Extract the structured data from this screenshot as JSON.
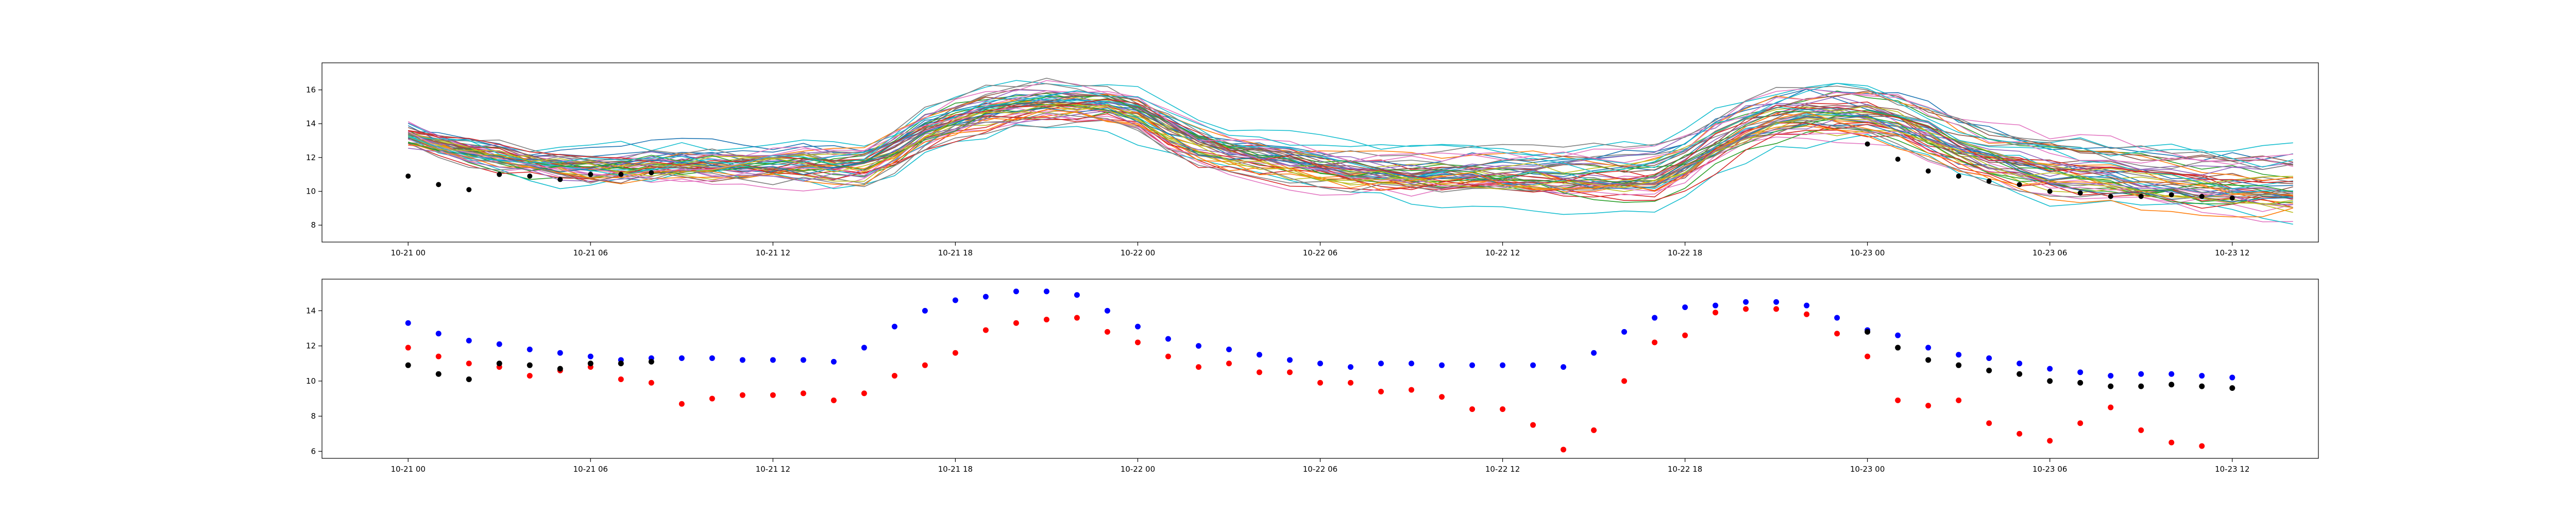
{
  "chart_data": [
    {
      "type": "line",
      "title": "",
      "xlabel": "",
      "ylabel": "",
      "x_start": "2023-10-21 00:00",
      "x_step_hours": 1,
      "xlim": [
        "2023-10-20 21:10",
        "2023-10-23 14:50"
      ],
      "ylim": [
        7.0,
        17.6
      ],
      "yticks": [
        8,
        10,
        12,
        14,
        16
      ],
      "xticks": [
        {
          "t": "2023-10-21 00:00",
          "label": "10-21 00"
        },
        {
          "t": "2023-10-21 06:00",
          "label": "10-21 06"
        },
        {
          "t": "2023-10-21 12:00",
          "label": "10-21 12"
        },
        {
          "t": "2023-10-21 18:00",
          "label": "10-21 18"
        },
        {
          "t": "2023-10-22 00:00",
          "label": "10-22 00"
        },
        {
          "t": "2023-10-22 06:00",
          "label": "10-22 06"
        },
        {
          "t": "2023-10-22 12:00",
          "label": "10-22 12"
        },
        {
          "t": "2023-10-22 18:00",
          "label": "10-22 18"
        },
        {
          "t": "2023-10-23 00:00",
          "label": "10-23 00"
        },
        {
          "t": "2023-10-23 06:00",
          "label": "10-23 06"
        },
        {
          "t": "2023-10-23 12:00",
          "label": "10-23 12"
        }
      ],
      "ensemble_mean": [
        13.3,
        12.8,
        12.4,
        12.1,
        11.8,
        11.6,
        11.4,
        11.4,
        11.5,
        11.6,
        11.6,
        11.6,
        11.6,
        11.6,
        11.5,
        11.5,
        12.4,
        13.5,
        14.2,
        14.7,
        15.0,
        15.2,
        15.2,
        15.1,
        14.6,
        13.6,
        12.8,
        12.3,
        12.0,
        11.7,
        11.4,
        11.2,
        11.1,
        10.9,
        10.9,
        10.9,
        10.9,
        10.9,
        10.8,
        10.8,
        10.8,
        10.9,
        11.7,
        12.8,
        13.7,
        14.3,
        14.6,
        14.7,
        14.6,
        14.2,
        13.5,
        12.7,
        12.1,
        11.7,
        11.4,
        11.2,
        11.0,
        10.8,
        10.6,
        10.5,
        10.4,
        10.3,
        10.3
      ],
      "ensemble_members": 50,
      "ensemble_colors": [
        "#1f77b4",
        "#ff7f0e",
        "#2ca02c",
        "#d62728",
        "#9467bd",
        "#8c564b",
        "#e377c2",
        "#7f7f7f",
        "#bcbd22",
        "#17becf"
      ],
      "observations": {
        "color": "#000000",
        "points": [
          {
            "h": 0,
            "v": 10.9
          },
          {
            "h": 1,
            "v": 10.4
          },
          {
            "h": 2,
            "v": 10.1
          },
          {
            "h": 3,
            "v": 11.0
          },
          {
            "h": 4,
            "v": 10.9
          },
          {
            "h": 5,
            "v": 10.7
          },
          {
            "h": 6,
            "v": 11.0
          },
          {
            "h": 7,
            "v": 11.0
          },
          {
            "h": 8,
            "v": 11.1
          },
          {
            "h": 48,
            "v": 12.8
          },
          {
            "h": 49,
            "v": 11.9
          },
          {
            "h": 50,
            "v": 11.2
          },
          {
            "h": 51,
            "v": 10.9
          },
          {
            "h": 52,
            "v": 10.6
          },
          {
            "h": 53,
            "v": 10.4
          },
          {
            "h": 54,
            "v": 10.0
          },
          {
            "h": 55,
            "v": 9.9
          },
          {
            "h": 56,
            "v": 9.7
          },
          {
            "h": 57,
            "v": 9.7
          },
          {
            "h": 58,
            "v": 9.8
          },
          {
            "h": 59,
            "v": 9.7
          },
          {
            "h": 60,
            "v": 9.6
          }
        ]
      }
    },
    {
      "type": "scatter",
      "title": "",
      "xlabel": "",
      "ylabel": "",
      "xlim": [
        "2023-10-20 21:10",
        "2023-10-23 14:50"
      ],
      "ylim": [
        5.6,
        15.8
      ],
      "yticks": [
        6,
        8,
        10,
        12,
        14
      ],
      "series": [
        {
          "color": "#0000ff",
          "start_hour": 0,
          "values": [
            13.3,
            12.7,
            12.3,
            12.1,
            11.8,
            11.6,
            11.4,
            11.2,
            11.3,
            11.3,
            11.3,
            11.2,
            11.2,
            11.2,
            11.1,
            11.9,
            13.1,
            14.0,
            14.6,
            14.8,
            15.1,
            15.1,
            14.9,
            14.0,
            13.1,
            12.4,
            12.0,
            11.8,
            11.5,
            11.2,
            11.0,
            10.8,
            11.0,
            11.0,
            10.9,
            10.9,
            10.9,
            10.9,
            10.8,
            11.6,
            12.8,
            13.6,
            14.2,
            14.3,
            14.5,
            14.5,
            14.3,
            13.6,
            12.9,
            12.6,
            11.9,
            11.5,
            11.3,
            11.0,
            10.7,
            10.5,
            10.3,
            10.4,
            10.4,
            10.3,
            10.2
          ]
        },
        {
          "color": "#ff0000",
          "start_hour": 0,
          "values": [
            11.9,
            11.4,
            11.0,
            10.8,
            10.3,
            10.6,
            10.8,
            10.1,
            9.9,
            8.7,
            9.0,
            9.2,
            9.2,
            9.3,
            8.9,
            9.3,
            10.3,
            10.9,
            11.6,
            12.9,
            13.3,
            13.5,
            13.6,
            12.8,
            12.2,
            11.4,
            10.8,
            11.0,
            10.5,
            10.5,
            9.9,
            9.9,
            9.4,
            9.5,
            9.1,
            8.4,
            8.4,
            7.5,
            6.1,
            7.2,
            10.0,
            12.2,
            12.6,
            13.9,
            14.1,
            14.1,
            13.8,
            12.7,
            11.4,
            8.9,
            8.6,
            8.9,
            7.6,
            7.0,
            6.6,
            7.6,
            8.5,
            7.2,
            6.5,
            6.3
          ]
        },
        {
          "color": "#000000",
          "start_hour": 0,
          "values": [
            10.9,
            10.4,
            10.1,
            11.0,
            10.9,
            10.7,
            11.0,
            11.0,
            11.1,
            null,
            null,
            null,
            null,
            null,
            null,
            null,
            null,
            null,
            null,
            null,
            null,
            null,
            null,
            null,
            null,
            null,
            null,
            null,
            null,
            null,
            null,
            null,
            null,
            null,
            null,
            null,
            null,
            null,
            null,
            null,
            null,
            null,
            null,
            null,
            null,
            null,
            null,
            null,
            12.8,
            11.9,
            11.2,
            10.9,
            10.6,
            10.4,
            10.0,
            9.9,
            9.7,
            9.7,
            9.8,
            9.7,
            9.6
          ]
        }
      ]
    }
  ]
}
